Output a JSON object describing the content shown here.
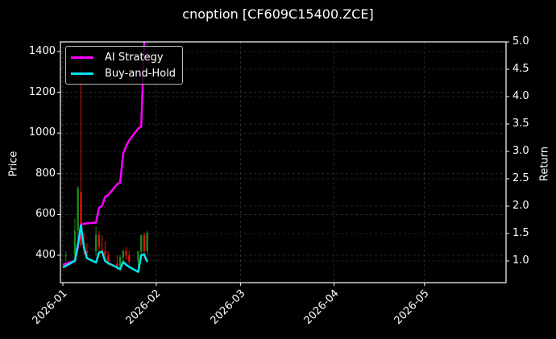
{
  "title": "cnoption [CF609C15400.ZCE]",
  "colors": {
    "background": "#000000",
    "ai_strategy": "#ff00ff",
    "buy_and_hold": "#00e5ee",
    "candle_up": "#1a8a1a",
    "candle_down": "#e01010",
    "grid": "#444444",
    "axis": "#ffffff"
  },
  "legend": {
    "items": [
      {
        "label": "AI Strategy",
        "color": "#ff00ff"
      },
      {
        "label": "Buy-and-Hold",
        "color": "#00e5ee"
      }
    ]
  },
  "axes": {
    "left_label": "Price",
    "right_label": "Return",
    "left_ticks": [
      "400",
      "600",
      "800",
      "1000",
      "1200",
      "1400"
    ],
    "right_ticks": [
      "1.0",
      "1.5",
      "2.0",
      "2.5",
      "3.0",
      "3.5",
      "4.0",
      "4.5",
      "5.0"
    ],
    "x_ticks": [
      "2026-01",
      "2026-02",
      "2026-03",
      "2026-04",
      "2026-05"
    ]
  },
  "chart_data": {
    "type": "line",
    "title": "cnoption [CF609C15400.ZCE]",
    "xlabel": "",
    "ylabel": "Price",
    "ylabel_right": "Return",
    "ylim": [
      270,
      1450
    ],
    "ylim_right": [
      0.6,
      5.0
    ],
    "xlim": [
      "2025-12-31",
      "2026-05-30"
    ],
    "grid": true,
    "legend_position": "upper left",
    "candles": {
      "name": "Price (OHLC)",
      "x": [
        "2026-01-02",
        "2026-01-05",
        "2026-01-06",
        "2026-01-07",
        "2026-01-08",
        "2026-01-09",
        "2026-01-12",
        "2026-01-13",
        "2026-01-14",
        "2026-01-15",
        "2026-01-16",
        "2026-01-19",
        "2026-01-20",
        "2026-01-21",
        "2026-01-22",
        "2026-01-23",
        "2026-01-26",
        "2026-01-27",
        "2026-01-28",
        "2026-01-29"
      ],
      "open": [
        395,
        400,
        520,
        710,
        440,
        420,
        420,
        500,
        430,
        420,
        400,
        360,
        345,
        390,
        420,
        400,
        370,
        420,
        500,
        420
      ],
      "high": [
        420,
        580,
        740,
        1400,
        510,
        460,
        540,
        520,
        500,
        470,
        420,
        400,
        400,
        430,
        440,
        420,
        420,
        500,
        510,
        520
      ],
      "low": [
        370,
        380,
        440,
        440,
        400,
        380,
        400,
        420,
        400,
        380,
        350,
        330,
        320,
        360,
        380,
        350,
        340,
        400,
        380,
        400
      ],
      "close": [
        400,
        520,
        730,
        450,
        430,
        410,
        500,
        440,
        420,
        400,
        360,
        345,
        390,
        420,
        400,
        370,
        420,
        500,
        420,
        510
      ]
    },
    "series": [
      {
        "name": "AI Strategy",
        "axis": "right",
        "x": [
          "2026-01-01",
          "2026-01-05",
          "2026-01-06",
          "2026-01-07",
          "2026-01-08",
          "2026-01-12",
          "2026-01-13",
          "2026-01-14",
          "2026-01-15",
          "2026-01-16",
          "2026-01-19",
          "2026-01-20",
          "2026-01-21",
          "2026-01-22",
          "2026-01-23",
          "2026-01-26",
          "2026-01-27",
          "2026-01-28"
        ],
        "values": [
          0.93,
          1.0,
          1.25,
          1.66,
          1.68,
          1.7,
          1.97,
          2.0,
          2.17,
          2.2,
          2.4,
          2.43,
          2.95,
          3.1,
          3.2,
          3.42,
          3.45,
          5.0
        ]
      },
      {
        "name": "Buy-and-Hold",
        "axis": "right",
        "x": [
          "2026-01-01",
          "2026-01-05",
          "2026-01-06",
          "2026-01-07",
          "2026-01-08",
          "2026-01-09",
          "2026-01-12",
          "2026-01-13",
          "2026-01-14",
          "2026-01-15",
          "2026-01-16",
          "2026-01-19",
          "2026-01-20",
          "2026-01-21",
          "2026-01-22",
          "2026-01-23",
          "2026-01-26",
          "2026-01-27",
          "2026-01-28",
          "2026-01-29"
        ],
        "values": [
          0.88,
          1.0,
          1.3,
          1.65,
          1.25,
          1.05,
          0.97,
          1.15,
          1.17,
          1.0,
          0.96,
          0.88,
          0.85,
          0.98,
          0.93,
          0.89,
          0.8,
          1.1,
          1.12,
          0.98
        ]
      }
    ]
  }
}
